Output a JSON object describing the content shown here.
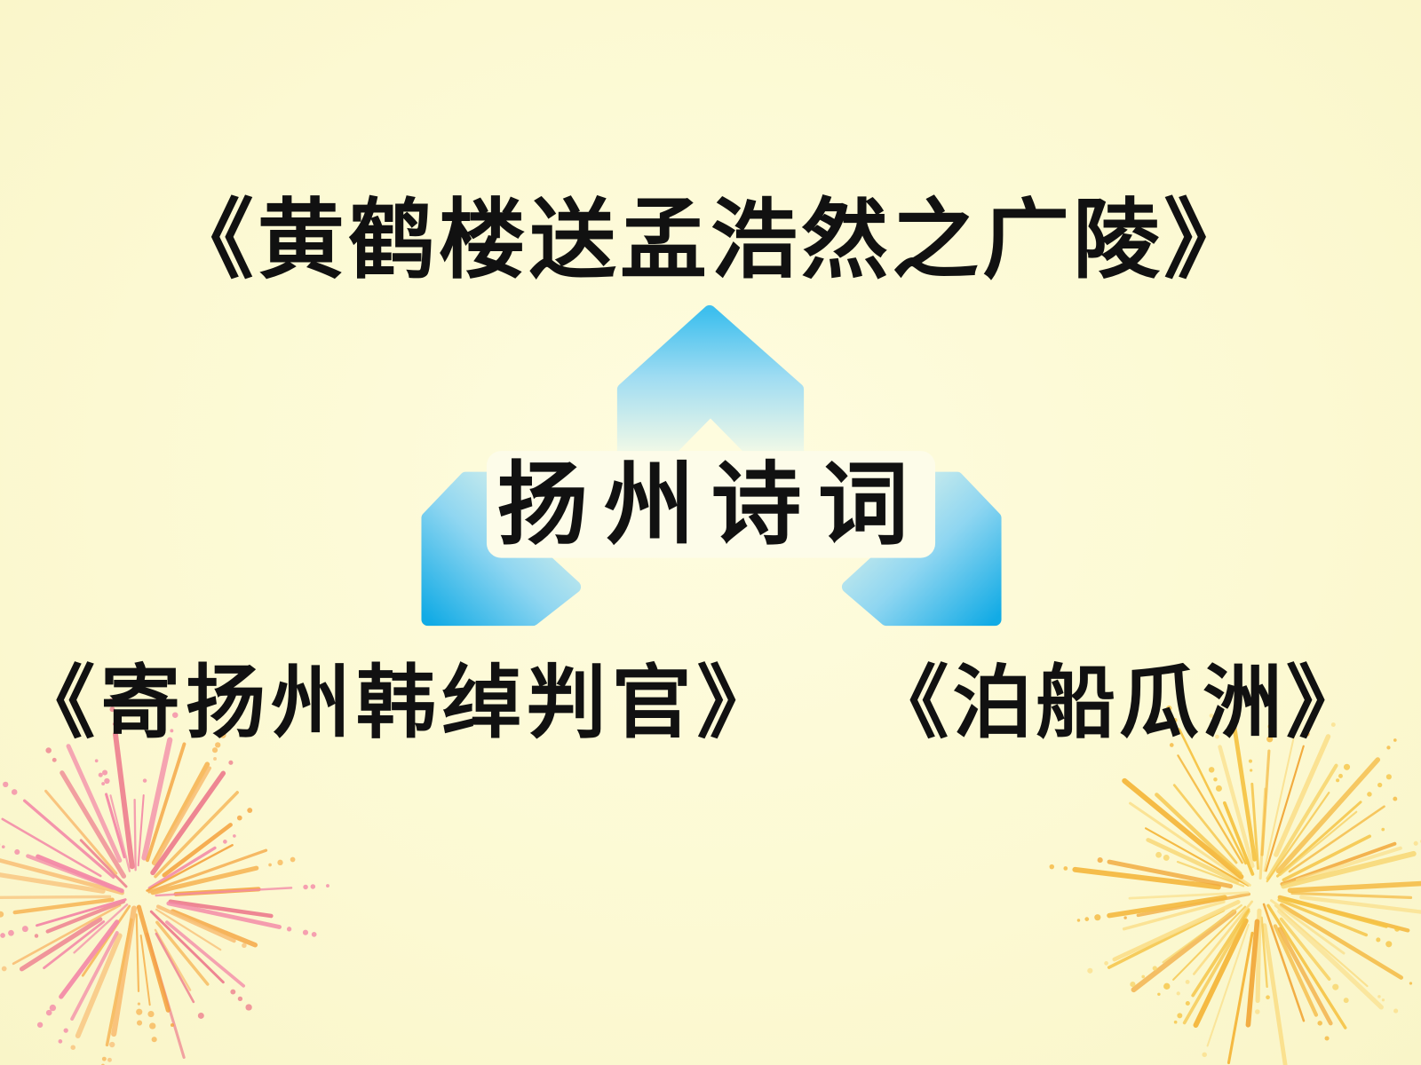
{
  "poem_titles": {
    "top": "《黄鹤楼送孟浩然之广陵》",
    "bottom_left": "《寄扬州韩绰判官》",
    "bottom_right": "《泊船瓜洲》"
  },
  "center_title": "扬州诗词",
  "logo": {
    "icon": "triangle-chevron-logo-icon",
    "color": "#14ade6"
  },
  "decorations": {
    "left": {
      "icon": "firework-icon",
      "colors": [
        "#f48aa8",
        "#f5a23c",
        "#f7b85a",
        "#ee7f8f",
        "#f9c27a"
      ]
    },
    "right": {
      "icon": "firework-icon",
      "colors": [
        "#f6c445",
        "#f8d46a",
        "#f2a93b",
        "#fbe08c",
        "#f5b83e"
      ]
    }
  },
  "colors": {
    "background": "#fcf9d3",
    "text": "#111111"
  }
}
